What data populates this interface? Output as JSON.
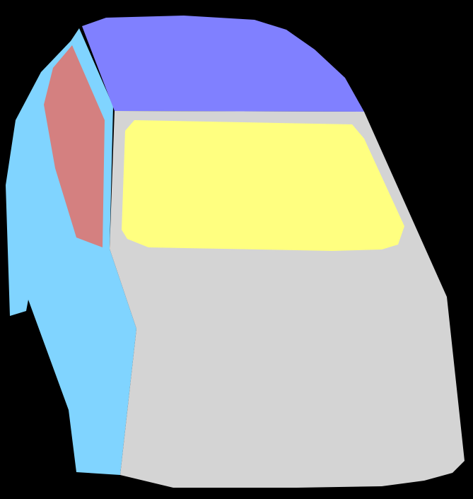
{
  "scene": {
    "background": "#000000",
    "segments": [
      {
        "key": "roof",
        "color": "#8080ff"
      },
      {
        "key": "side-body",
        "color": "#80d4ff"
      },
      {
        "key": "side-window",
        "color": "#d48080"
      },
      {
        "key": "front-body",
        "color": "#d4d4d4"
      },
      {
        "key": "windshield",
        "color": "#ffff80"
      }
    ]
  }
}
